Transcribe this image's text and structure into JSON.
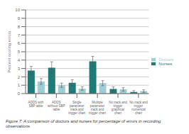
{
  "chart_data": {
    "type": "bar",
    "caption": "Figure 7: A comparison of doctors and nurses for percentage of errors in recording observations",
    "ylabel": "Percent scoring errors",
    "categories": [
      "ADDS with\nSBP table",
      "ADDS\nwithout SBP\ntable",
      "Single\nparameter\ntrack and\ntrigger chart",
      "Multiple\nparameter\ntrack and\ntrigger chart",
      "No track and\ntrigger\ngraphical\nchart",
      "No track and\ntrigger\nnumerical\nchart"
    ],
    "series": [
      {
        "name": "Nurses",
        "color": "#1f7a78",
        "values": [
          2.75,
          3.1,
          1.3,
          3.85,
          0.55,
          0.2
        ],
        "errors": [
          0.5,
          0.7,
          0.35,
          0.6,
          0.25,
          0.15
        ]
      },
      {
        "name": "Doctors",
        "color": "#9ecdd4",
        "values": [
          1.45,
          1.0,
          0.6,
          1.25,
          0.5,
          0.3
        ],
        "errors": [
          0.35,
          0.25,
          0.2,
          0.3,
          0.2,
          0.15
        ]
      }
    ],
    "ylim": [
      0,
      10
    ],
    "yticks": [
      0,
      1,
      2,
      3,
      4,
      5,
      6,
      7,
      8,
      9,
      10
    ],
    "grid": true,
    "legend": "right"
  }
}
